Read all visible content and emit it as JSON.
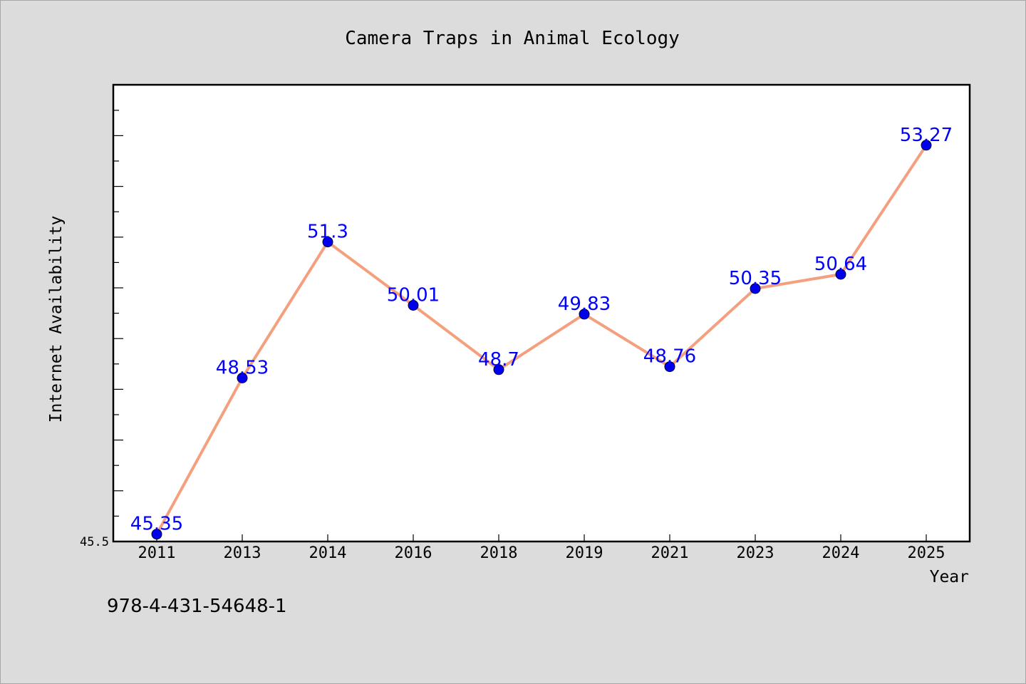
{
  "chart_data": {
    "type": "line",
    "title": "Camera Traps in Animal Ecology",
    "xlabel": "Year",
    "ylabel": "Internet Availability",
    "categories": [
      "2011",
      "2013",
      "2014",
      "2016",
      "2018",
      "2019",
      "2021",
      "2023",
      "2024",
      "2025"
    ],
    "series": [
      {
        "values": [
          45.35,
          48.53,
          51.3,
          50.01,
          48.7,
          49.83,
          48.76,
          50.35,
          50.64,
          53.27
        ]
      }
    ],
    "data_labels": [
      "45.35",
      "48.53",
      "51.3",
      "50.01",
      "48.7",
      "49.83",
      "48.76",
      "50.35",
      "50.64",
      "53.27"
    ],
    "ylim": [
      45.2,
      54.5
    ],
    "y_tick_label": "45.5",
    "grid": false,
    "line_color": "#f4a07f",
    "marker_color": "#0000ee",
    "label_color": "#0000ff"
  },
  "footer_text": "978-4-431-54648-1"
}
